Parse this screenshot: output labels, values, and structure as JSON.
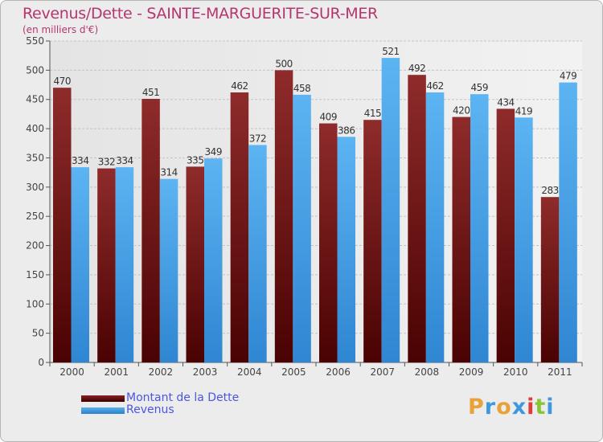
{
  "header": {
    "title": "Revenus/Dette - SAINTE-MARGUERITE-SUR-MER",
    "subtitle": "(en milliers d'€)"
  },
  "colors": {
    "debt": "#7a1c1c",
    "revenue": "#3d98e0",
    "title": "#b5366e",
    "legend_text": "#4a56e0"
  },
  "legend": {
    "debt_label": "Montant de la Dette",
    "revenue_label": "Revenus"
  },
  "logo": {
    "text": "Proxiti"
  },
  "chart_data": {
    "type": "bar",
    "title": "Revenus/Dette - SAINTE-MARGUERITE-SUR-MER",
    "subtitle": "(en milliers d'€)",
    "categories": [
      "2000",
      "2001",
      "2002",
      "2003",
      "2004",
      "2005",
      "2006",
      "2007",
      "2008",
      "2009",
      "2010",
      "2011"
    ],
    "series": [
      {
        "name": "Montant de la Dette",
        "values": [
          470,
          332,
          451,
          335,
          462,
          500,
          409,
          415,
          492,
          420,
          434,
          283
        ]
      },
      {
        "name": "Revenus",
        "values": [
          334,
          334,
          314,
          349,
          372,
          458,
          386,
          521,
          462,
          459,
          419,
          479
        ]
      }
    ],
    "ylim": [
      0,
      550
    ],
    "yticks": [
      0,
      50,
      100,
      150,
      200,
      250,
      300,
      350,
      400,
      450,
      500,
      550
    ],
    "grid": true,
    "legend_position": "bottom-left"
  }
}
